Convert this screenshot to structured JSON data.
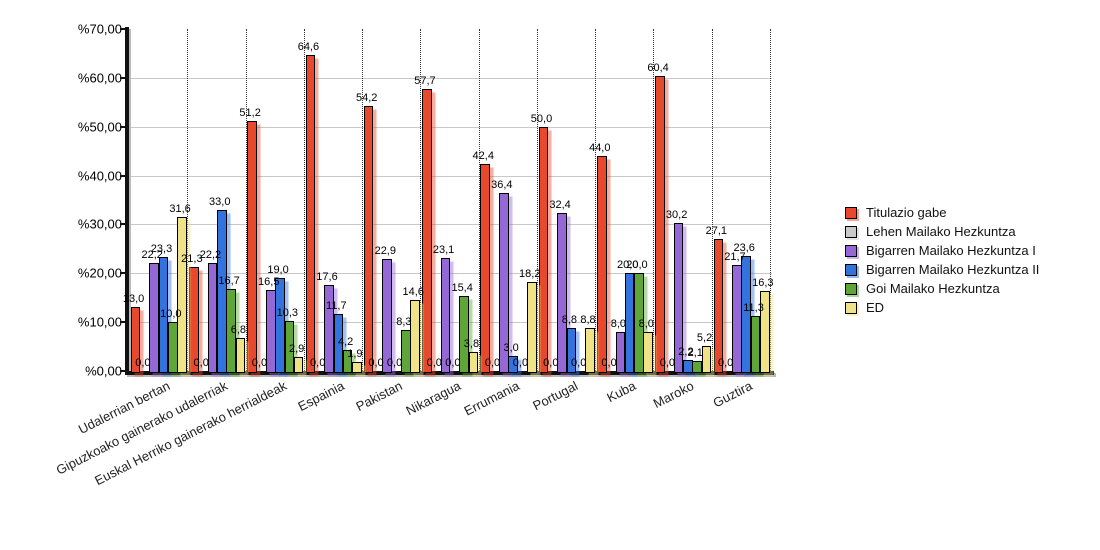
{
  "chart_data": {
    "type": "bar",
    "title": "",
    "categories": [
      "Udalerrian bertan",
      "Gipuzkoako gainerako udalerriak",
      "Euskal Herriko gainerako herrialdeak",
      "Espainia",
      "Pakistan",
      "Nikaragua",
      "Errumania",
      "Portugal",
      "Kuba",
      "Maroko",
      "Guztira"
    ],
    "series": [
      {
        "name": "Titulazio gabe",
        "color": "#e8492d",
        "values": [
          13.0,
          21.3,
          51.2,
          64.6,
          54.2,
          57.7,
          42.4,
          50.0,
          44.0,
          60.4,
          27.1
        ]
      },
      {
        "name": "Lehen Mailako Hezkuntza",
        "color": "#c9c9c9",
        "values": [
          0.0,
          0.0,
          0.0,
          0.0,
          0.0,
          0.0,
          0.0,
          0.0,
          0.0,
          0.0,
          0.0
        ]
      },
      {
        "name": "Bigarren Mailako Hezkuntza I",
        "color": "#9668d6",
        "values": [
          22.2,
          22.2,
          16.5,
          17.6,
          22.9,
          23.1,
          36.4,
          32.4,
          8.0,
          30.2,
          21.7
        ]
      },
      {
        "name": "Bigarren Mailako Hezkuntza II",
        "color": "#3273de",
        "values": [
          23.3,
          33.0,
          19.0,
          11.7,
          0.0,
          0.0,
          3.0,
          8.8,
          20.0,
          2.2,
          23.6
        ]
      },
      {
        "name": "Goi Mailako Hezkuntza",
        "color": "#5ea638",
        "values": [
          10.0,
          16.7,
          10.3,
          4.2,
          8.3,
          15.4,
          0.0,
          0.0,
          20.0,
          2.1,
          11.3
        ]
      },
      {
        "name": "ED",
        "color": "#f0e287",
        "values": [
          31.6,
          6.8,
          2.9,
          1.9,
          14.6,
          3.8,
          18.2,
          8.8,
          8.0,
          5.2,
          16.3
        ]
      }
    ],
    "ylim": [
      0,
      70
    ],
    "ytick_step": 10,
    "ytick_labels": [
      "%0,00",
      "%10,00",
      "%20,00",
      "%30,00",
      "%40,00",
      "%50,00",
      "%60,00",
      "%70,00"
    ],
    "value_label_decimals": 1,
    "decimal_separator": ",",
    "grid": "horizontal solid gray + vertical dotted group separators",
    "legend_position": "right"
  }
}
